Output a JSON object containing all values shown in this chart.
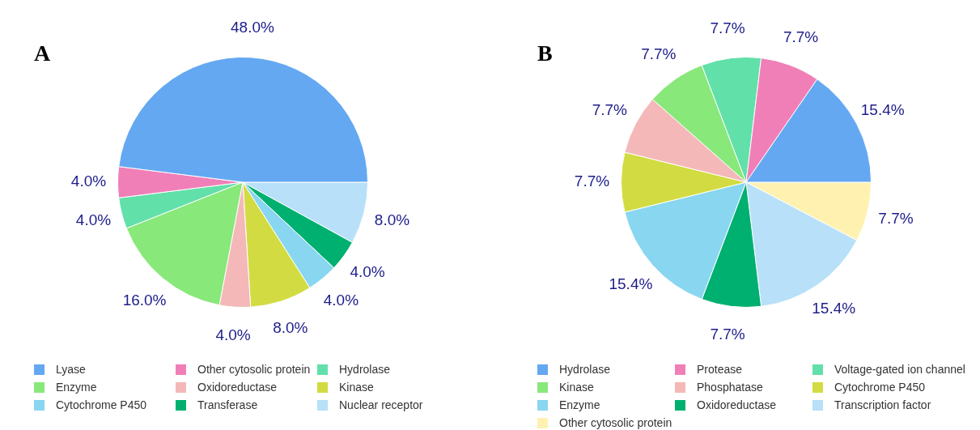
{
  "chart_data": [
    {
      "type": "pie",
      "title": "A",
      "legend": "bottom",
      "categories": [
        "Lyase",
        "Other cytosolic protein",
        "Hydrolase",
        "Enzyme",
        "Oxidoreductase",
        "Kinase",
        "Cytochrome P450",
        "Transferase",
        "Nuclear receptor"
      ],
      "values": [
        48.0,
        4.0,
        4.0,
        16.0,
        4.0,
        8.0,
        4.0,
        4.0,
        8.0
      ],
      "value_labels": [
        "48.0%",
        "4.0%",
        "4.0%",
        "16.0%",
        "4.0%",
        "8.0%",
        "4.0%",
        "4.0%",
        "8.0%"
      ],
      "colors": [
        "#64a8f2",
        "#f07fb8",
        "#62e0aa",
        "#88e87a",
        "#f4b8b8",
        "#d2dc42",
        "#88d6f0",
        "#00b070",
        "#b8e0f8"
      ]
    },
    {
      "type": "pie",
      "title": "B",
      "legend": "bottom",
      "categories": [
        "Hydrolase",
        "Protease",
        "Voltage-gated ion channel",
        "Kinase",
        "Phosphatase",
        "Cytochrome P450",
        "Enzyme",
        "Oxidoreductase",
        "Transcription factor",
        "Other cytosolic protein"
      ],
      "values": [
        15.4,
        7.7,
        7.7,
        7.7,
        7.7,
        7.7,
        15.4,
        7.7,
        15.4,
        7.7
      ],
      "value_labels": [
        "15.4%",
        "7.7%",
        "7.7%",
        "7.7%",
        "7.7%",
        "7.7%",
        "15.4%",
        "7.7%",
        "15.4%",
        "7.7%"
      ],
      "colors": [
        "#64a8f2",
        "#f07fb8",
        "#62e0aa",
        "#88e87a",
        "#f4b8b8",
        "#d2dc42",
        "#88d6f0",
        "#00b070",
        "#b8e0f8",
        "#fff2b0"
      ]
    }
  ]
}
